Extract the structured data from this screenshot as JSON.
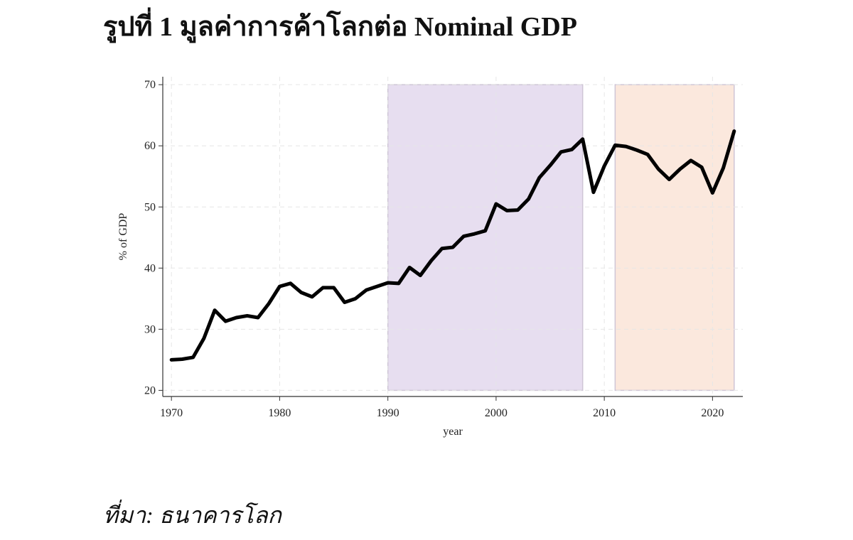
{
  "chart_data": {
    "type": "line",
    "title": "รูปที่ 1 มูลค่าการค้าโลกต่อ Nominal GDP",
    "source": "ที่มา: ธนาคารโลก",
    "x_label": "year",
    "y_label": "% of GDP",
    "x": [
      1970,
      1971,
      1972,
      1973,
      1974,
      1975,
      1976,
      1977,
      1978,
      1979,
      1980,
      1981,
      1982,
      1983,
      1984,
      1985,
      1986,
      1987,
      1988,
      1989,
      1990,
      1991,
      1992,
      1993,
      1994,
      1995,
      1996,
      1997,
      1998,
      1999,
      2000,
      2001,
      2002,
      2003,
      2004,
      2005,
      2006,
      2007,
      2008,
      2009,
      2010,
      2011,
      2012,
      2013,
      2014,
      2015,
      2016,
      2017,
      2018,
      2019,
      2020,
      2021,
      2022
    ],
    "values": [
      25.0,
      25.1,
      25.4,
      28.5,
      33.1,
      31.3,
      31.9,
      32.2,
      31.9,
      34.2,
      37.0,
      37.5,
      36.0,
      35.3,
      36.8,
      36.8,
      34.4,
      35.0,
      36.4,
      37.0,
      37.6,
      37.5,
      40.1,
      38.8,
      41.2,
      43.2,
      43.4,
      45.2,
      45.6,
      46.1,
      50.5,
      49.4,
      49.5,
      51.3,
      54.8,
      56.8,
      59.0,
      59.4,
      61.1,
      52.4,
      56.7,
      60.1,
      59.9,
      59.3,
      58.6,
      56.2,
      54.5,
      56.2,
      57.6,
      56.5,
      52.3,
      56.4,
      62.4
    ],
    "color": "#000000",
    "shaded_regions": [
      {
        "x": [
          1990,
          2008
        ],
        "y": [
          20,
          70
        ],
        "color": "#e7def0"
      },
      {
        "x": [
          2011,
          2022
        ],
        "y": [
          20,
          70
        ],
        "color": "#fbe8dd"
      }
    ],
    "xlim": [
      1969.2,
      2022.8
    ],
    "ylim": [
      19,
      71.3
    ],
    "xticks": [
      1970,
      1980,
      1990,
      2000,
      2010,
      2020
    ],
    "yticks": [
      20,
      30,
      40,
      50,
      60,
      70
    ],
    "grid": true
  }
}
